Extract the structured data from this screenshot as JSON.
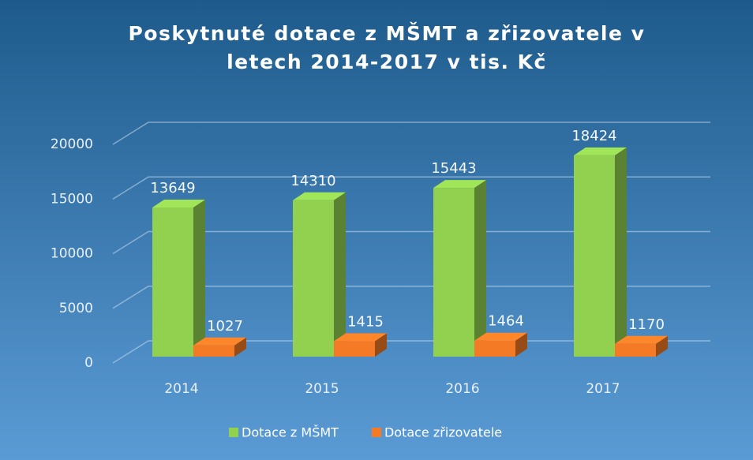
{
  "chart_data": {
    "type": "bar3d",
    "title": [
      "Poskytnuté dotace z MŠMT a zřizovatele v",
      "letech 2014-2017 v tis. Kč"
    ],
    "categories": [
      "2014",
      "2015",
      "2016",
      "2017"
    ],
    "series": [
      {
        "name": "Dotace z MŠMT",
        "color": "#92d050",
        "values": [
          13649,
          14310,
          15443,
          18424
        ]
      },
      {
        "name": "Dotace zřizovatele",
        "color": "#f47a25",
        "values": [
          1027,
          1415,
          1464,
          1170
        ]
      }
    ],
    "ylim": [
      0,
      20000
    ],
    "yticks": [
      0,
      5000,
      10000,
      15000,
      20000
    ],
    "grid": true,
    "legend": "bottom"
  }
}
